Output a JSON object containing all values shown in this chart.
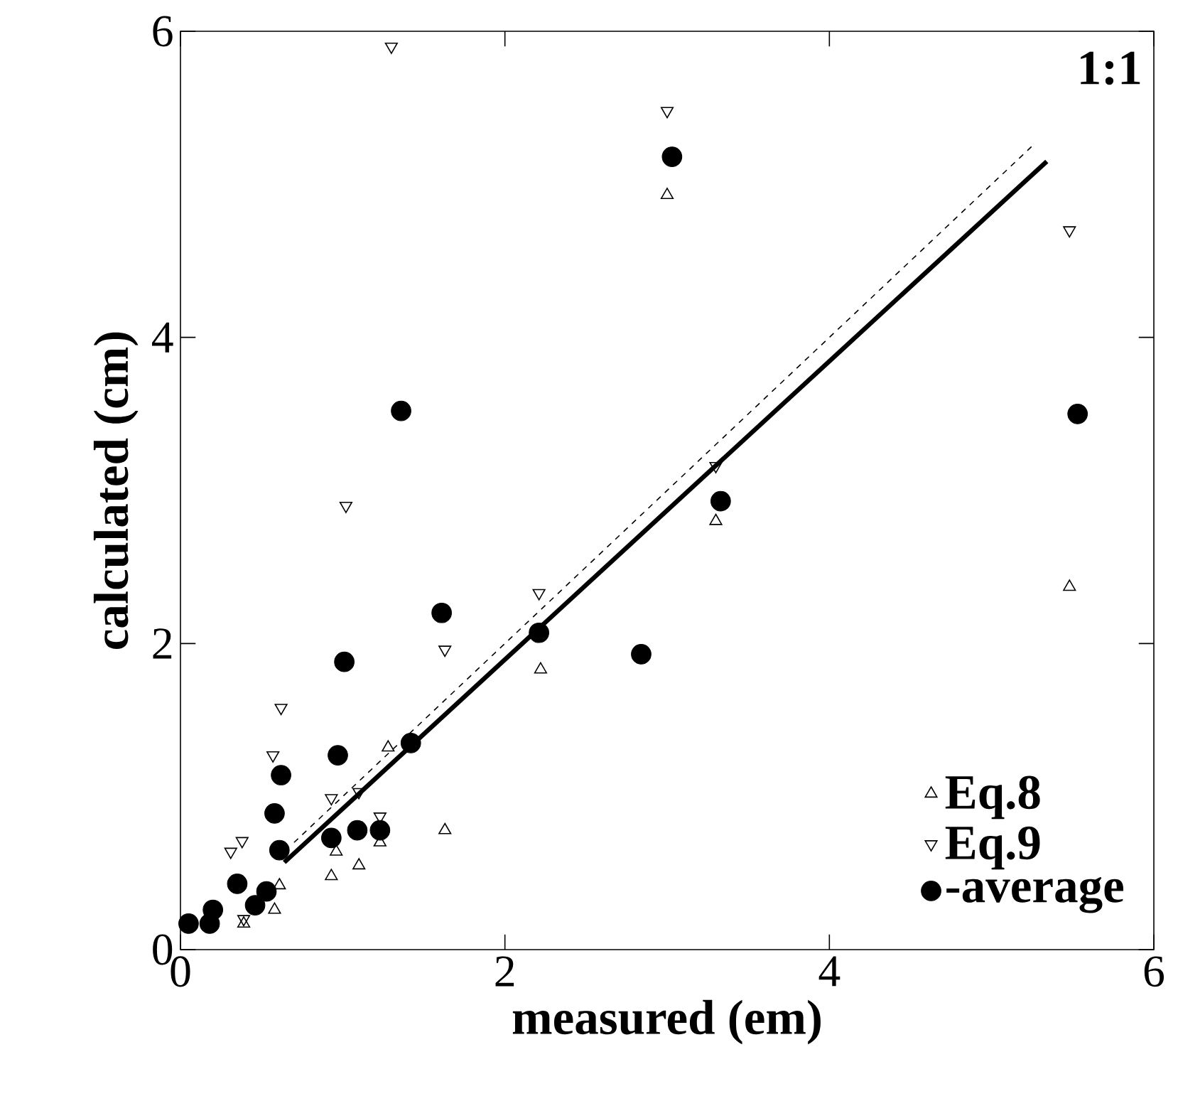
{
  "chart_data": {
    "type": "scatter",
    "xlabel": "measured (em)",
    "ylabel": "calculated (cm)",
    "xlim": [
      0,
      6
    ],
    "ylim": [
      0,
      6
    ],
    "xticks": [
      0,
      2,
      4,
      6
    ],
    "yticks": [
      0,
      2,
      4,
      6
    ],
    "grid": false,
    "legend": "bottom right",
    "annotations": [
      "1:1"
    ],
    "series": [
      {
        "name": "Eq.8",
        "color": "#000000",
        "marker": "triangle",
        "x": [
          3.0,
          5.48,
          3.3,
          2.22,
          1.63,
          0.93,
          1.1,
          1.28,
          1.23,
          0.96,
          0.39,
          0.61,
          0.58
        ],
        "values": [
          4.93,
          2.37,
          2.8,
          1.83,
          0.78,
          0.48,
          0.55,
          1.32,
          0.7,
          0.64,
          0.17,
          0.42,
          0.26
        ]
      },
      {
        "name": "Eq.9",
        "color": "#000000",
        "marker": "triangle-down",
        "x": [
          1.3,
          3.0,
          5.48,
          3.3,
          2.21,
          1.63,
          0.62,
          0.57,
          0.31,
          0.38,
          0.93,
          1.1,
          1.23,
          1.02,
          0.39
        ],
        "values": [
          5.9,
          5.48,
          4.7,
          3.16,
          2.33,
          1.96,
          1.58,
          1.27,
          0.64,
          0.71,
          0.99,
          1.03,
          0.87,
          2.9,
          0.2
        ]
      },
      {
        "name": "-average",
        "color": "#000000",
        "marker": "circle",
        "x": [
          1.36,
          3.03,
          3.33,
          5.53,
          2.21,
          2.84,
          1.61,
          1.01,
          0.97,
          1.42,
          0.62,
          0.58,
          0.61,
          0.93,
          1.09,
          1.23,
          0.35,
          0.53,
          0.46,
          0.2,
          0.05,
          0.18
        ],
        "values": [
          3.52,
          5.18,
          2.93,
          3.5,
          2.07,
          1.93,
          2.2,
          1.88,
          1.27,
          1.35,
          1.14,
          0.89,
          0.65,
          0.73,
          0.78,
          0.78,
          0.43,
          0.38,
          0.29,
          0.26,
          0.17,
          0.17
        ]
      },
      {
        "type": "line",
        "color": "#000000",
        "marker": "none",
        "line_style": "solid",
        "x": [
          0.64,
          5.34
        ],
        "values": [
          0.57,
          5.15
        ]
      },
      {
        "type": "line",
        "color": "#000000",
        "marker": "none",
        "line_style": "dashed",
        "x": [
          0.7,
          5.25
        ],
        "values": [
          0.7,
          5.25
        ]
      }
    ]
  }
}
